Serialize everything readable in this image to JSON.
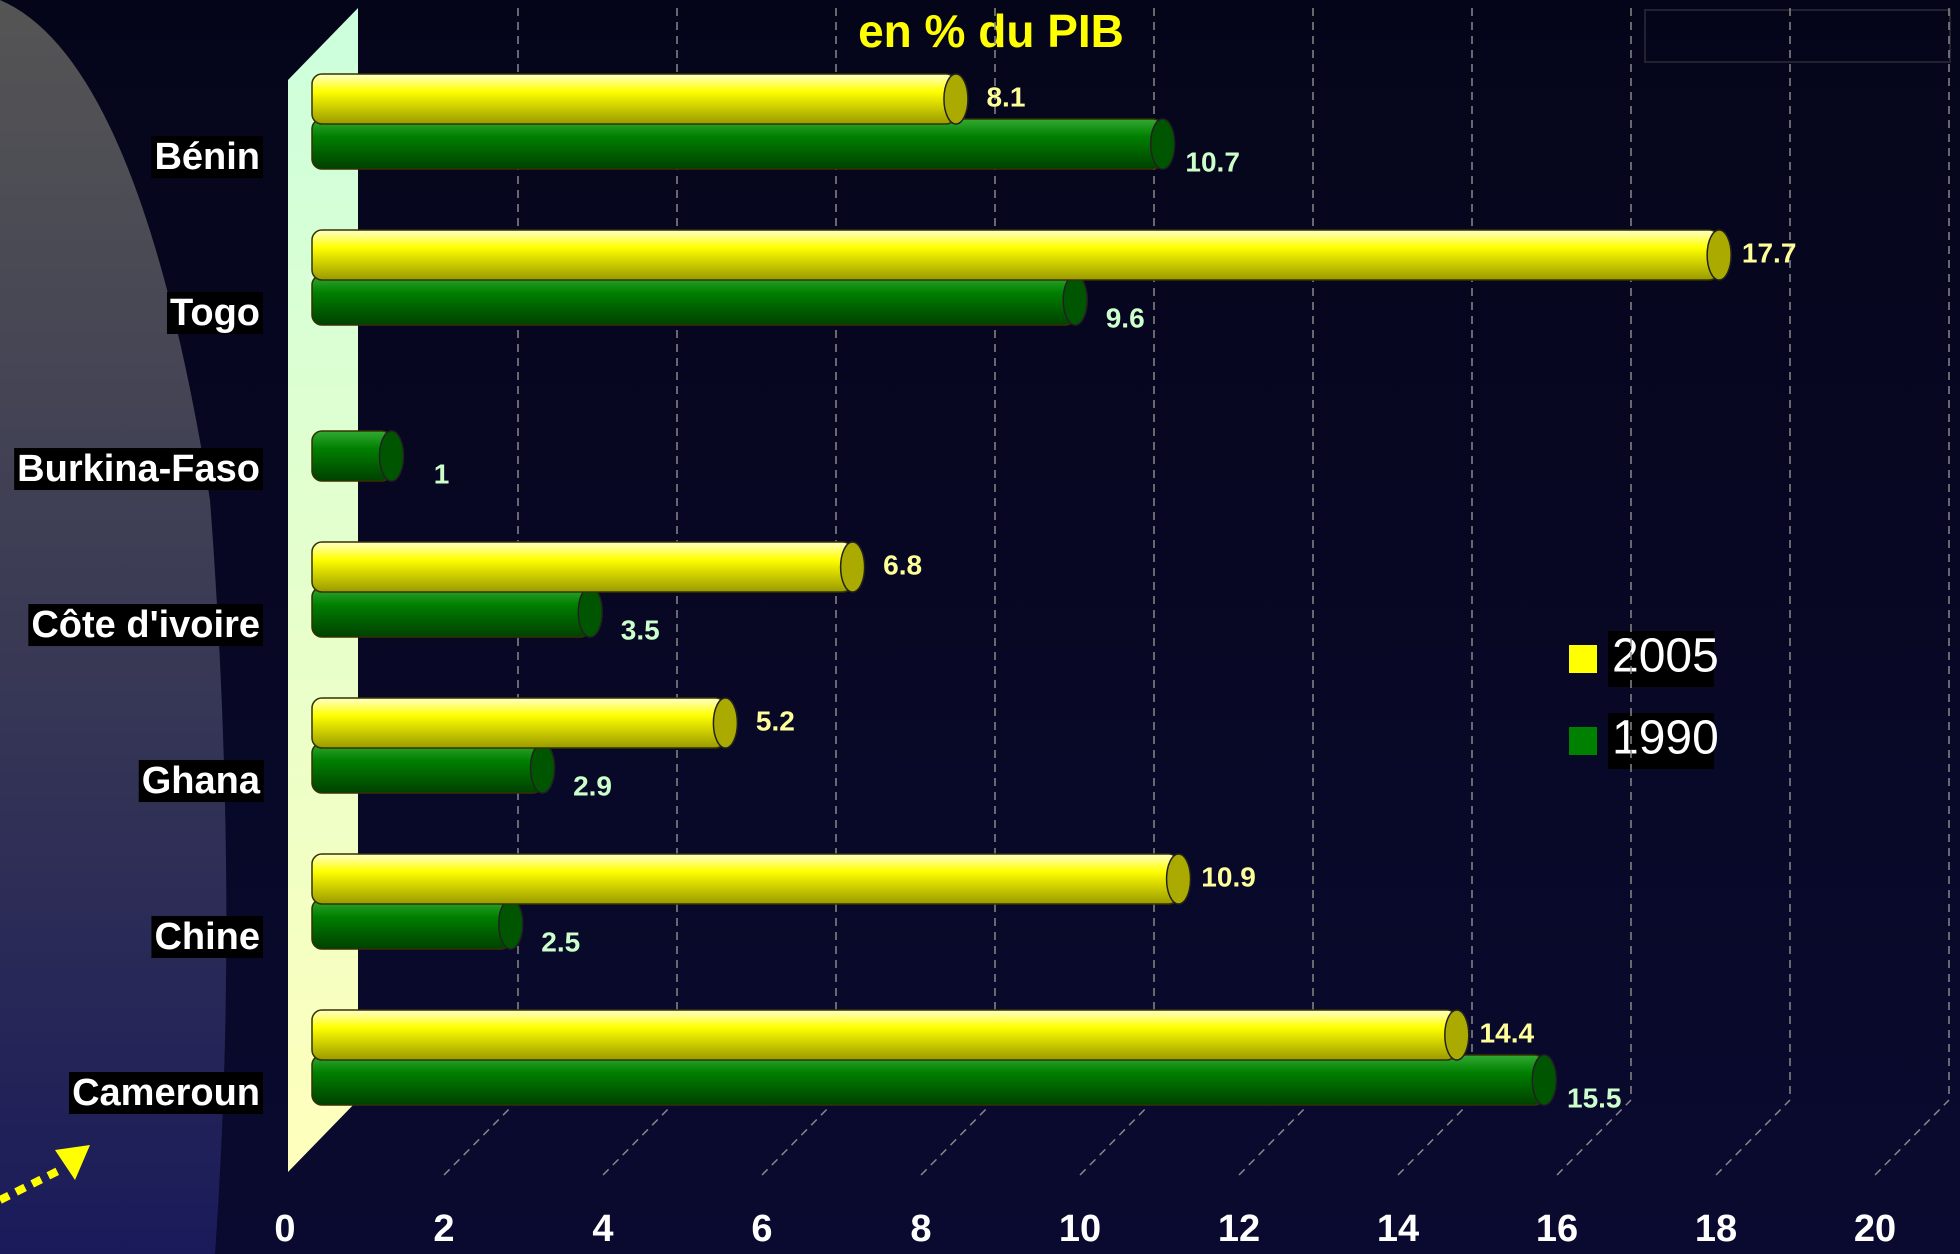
{
  "chart_data": {
    "type": "bar",
    "orientation": "horizontal",
    "title": "en % du PIB",
    "categories": [
      "Bénin",
      "Togo",
      "Burkina-Faso",
      "Côte d'ivoire",
      "Ghana",
      "Chine",
      "Cameroun"
    ],
    "series": [
      {
        "name": "2005",
        "color": "#ffff00",
        "values": [
          8.1,
          17.7,
          null,
          6.8,
          5.2,
          10.9,
          14.4
        ]
      },
      {
        "name": "1990",
        "color": "#008000",
        "values": [
          10.7,
          9.6,
          1,
          3.5,
          2.9,
          2.5,
          15.5
        ]
      }
    ],
    "xlim": [
      0,
      20
    ],
    "xticks": [
      0,
      2,
      4,
      6,
      8,
      10,
      12,
      14,
      16,
      18,
      20
    ],
    "grid": true,
    "legend": "right"
  }
}
